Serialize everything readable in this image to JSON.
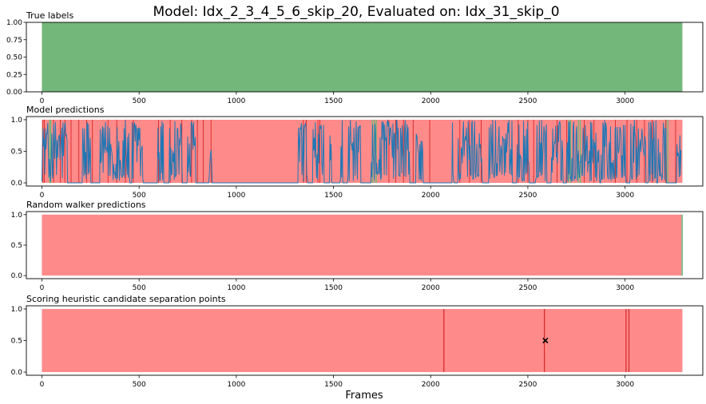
{
  "figure": {
    "suptitle": "Model: Idx_2_3_4_5_6_skip_20, Evaluated on: Idx_31_skip_0",
    "shared_xlabel": "Frames"
  },
  "colors": {
    "label_true": "#74b77a",
    "label_false": "#ff8a8a",
    "boundary_line": "#d62728",
    "prediction_line": "#1f77b4",
    "cross_marker": "#000000"
  },
  "chart_data": [
    {
      "type": "area",
      "title": "True labels",
      "xlim": [
        -80,
        3400
      ],
      "ylim": [
        0,
        1
      ],
      "x_ticks": [
        0,
        500,
        1000,
        1500,
        2000,
        2500,
        3000
      ],
      "y_ticks": [
        "0.00",
        "0.25",
        "0.50",
        "0.75",
        "1.00"
      ],
      "y_tick_values": [
        0,
        0.25,
        0.5,
        0.75,
        1.0
      ],
      "background_segments": [
        {
          "start": 0,
          "end": 3295,
          "label": "true"
        }
      ]
    },
    {
      "type": "line",
      "title": "Model predictions",
      "xlim": [
        -80,
        3400
      ],
      "ylim": [
        -0.05,
        1.05
      ],
      "x_ticks": [
        0,
        500,
        1000,
        1500,
        2000,
        2500,
        3000
      ],
      "y_ticks": [
        "0.0",
        "0.5",
        "1.0"
      ],
      "y_tick_values": [
        0,
        0.5,
        1.0
      ],
      "background_segments": [
        {
          "start": 0,
          "end": 3295,
          "label": "false"
        }
      ],
      "boundary_lines": [
        5,
        12,
        60,
        95,
        118,
        150,
        190,
        230,
        260,
        340,
        385,
        430,
        470,
        600,
        660,
        720,
        770,
        800,
        830,
        870,
        1345,
        1360,
        1420,
        1430,
        1785,
        1820,
        1860,
        1910,
        1995,
        2150,
        2200,
        2260,
        2450,
        2500,
        2530,
        2650,
        2700,
        2790,
        2840,
        2950,
        3010,
        3060,
        3100,
        3140,
        3210,
        3260
      ],
      "green_spikes": [
        40,
        45,
        1700,
        1710,
        1720,
        2710,
        2720,
        2760,
        2770,
        3210,
        3220
      ],
      "series": {
        "active_ranges": [
          [
            0,
            130
          ],
          [
            210,
            250
          ],
          [
            300,
            450
          ],
          [
            465,
            520
          ],
          [
            595,
            625
          ],
          [
            655,
            720
          ],
          [
            750,
            790
          ],
          [
            860,
            875
          ],
          [
            1320,
            1365
          ],
          [
            1395,
            1450
          ],
          [
            1480,
            1490
          ],
          [
            1535,
            1545
          ],
          [
            1575,
            1640
          ],
          [
            1695,
            1890
          ],
          [
            1925,
            1960
          ],
          [
            2110,
            2120
          ],
          [
            2140,
            2265
          ],
          [
            2300,
            2420
          ],
          [
            2445,
            2505
          ],
          [
            2540,
            2595
          ],
          [
            2620,
            2680
          ],
          [
            2700,
            2870
          ],
          [
            2875,
            3005
          ],
          [
            3025,
            3105
          ],
          [
            3120,
            3160
          ],
          [
            3170,
            3210
          ],
          [
            3265,
            3290
          ]
        ],
        "idle_value": 0.0
      }
    },
    {
      "type": "area",
      "title": "Random walker predictions",
      "xlim": [
        -80,
        3400
      ],
      "ylim": [
        -0.05,
        1.05
      ],
      "x_ticks": [
        0,
        500,
        1000,
        1500,
        2000,
        2500,
        3000
      ],
      "y_ticks": [
        "0.0",
        "0.5",
        "1.0"
      ],
      "y_tick_values": [
        0,
        0.5,
        1.0
      ],
      "background_segments": [
        {
          "start": 0,
          "end": 3290,
          "label": "false"
        },
        {
          "start": 3290,
          "end": 3297,
          "label": "true"
        }
      ]
    },
    {
      "type": "scatter",
      "title": "Scoring heuristic candidate separation points",
      "xlim": [
        -80,
        3400
      ],
      "ylim": [
        -0.05,
        1.05
      ],
      "x_ticks": [
        0,
        500,
        1000,
        1500,
        2000,
        2500,
        3000
      ],
      "y_ticks": [
        "0.0",
        "0.5",
        "1.0"
      ],
      "y_tick_values": [
        0,
        0.5,
        1.0
      ],
      "background_segments": [
        {
          "start": 0,
          "end": 3295,
          "label": "false"
        }
      ],
      "candidate_points": [
        2068,
        2585,
        3005,
        3020
      ],
      "selected_point": {
        "x": 2590,
        "y": 0.5
      }
    }
  ]
}
